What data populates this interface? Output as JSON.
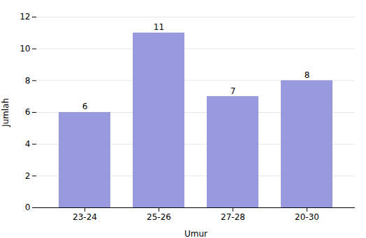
{
  "chart_data": {
    "type": "bar",
    "categories": [
      "23-24",
      "25-26",
      "27-28",
      "20-30"
    ],
    "values": [
      6,
      11,
      7,
      8
    ],
    "color": "#9999dd",
    "xlabel": "Umur",
    "ylabel": "Jumlah",
    "ylim": [
      0,
      12
    ],
    "yticks": [
      0,
      2,
      4,
      6,
      8,
      10,
      12
    ],
    "grid": true,
    "data_labels": true
  }
}
